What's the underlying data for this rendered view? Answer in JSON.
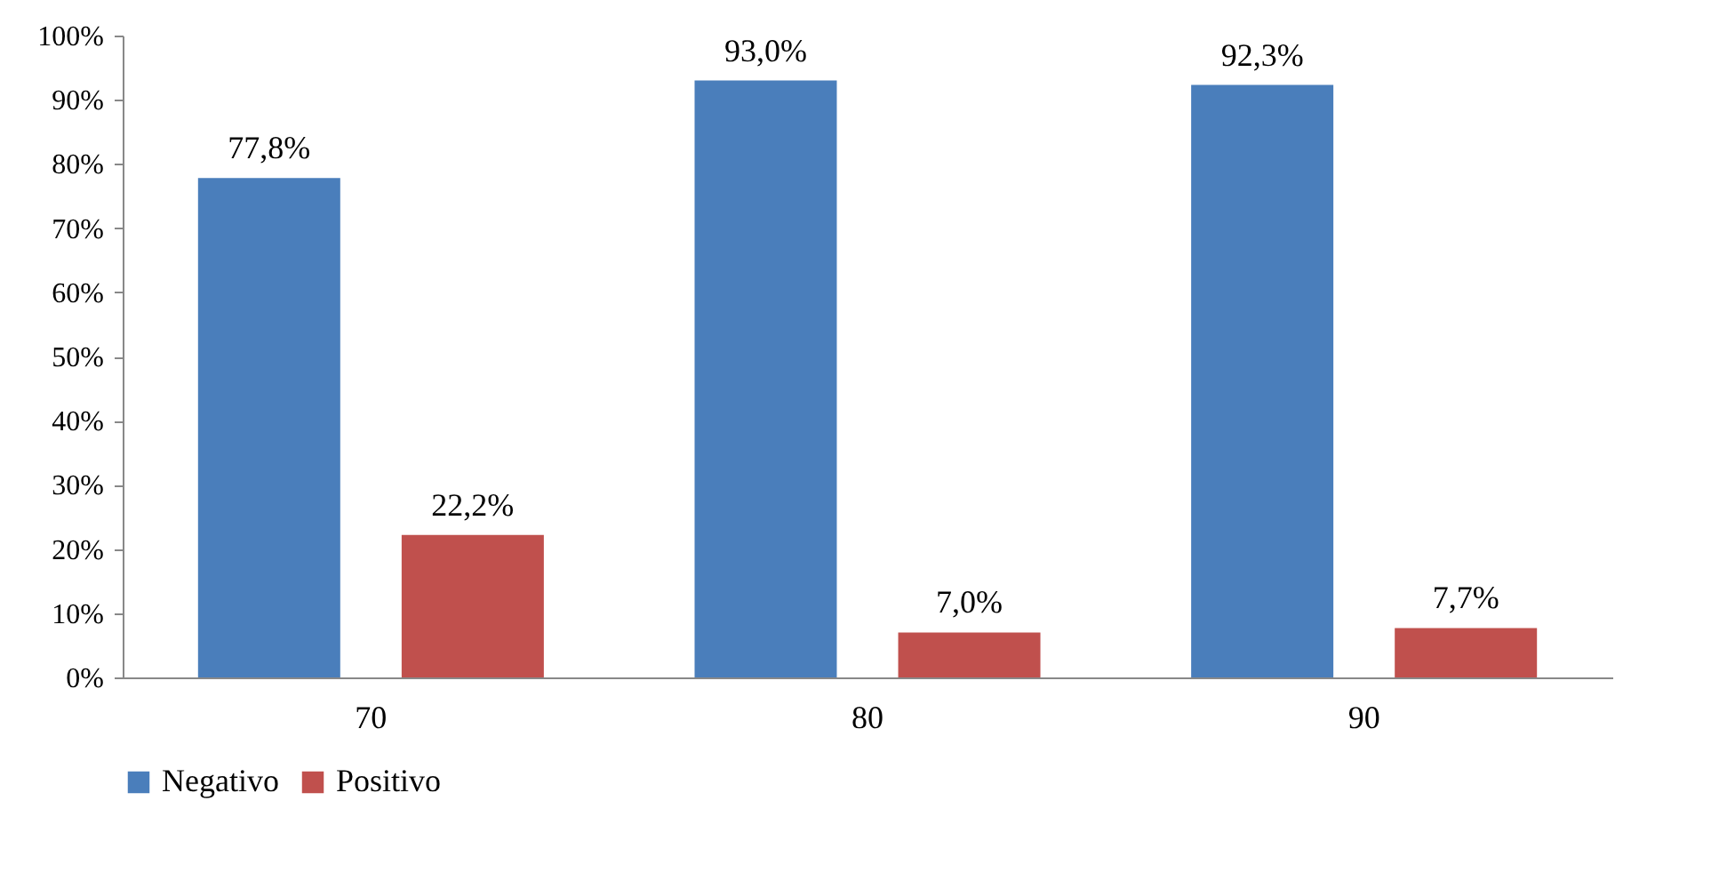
{
  "chart_data": {
    "type": "bar",
    "categories": [
      "70",
      "80",
      "90"
    ],
    "series": [
      {
        "name": "Negativo",
        "color": "#4a7ebb",
        "values": [
          77.8,
          93.0,
          92.3
        ],
        "value_labels": [
          "77,8%",
          "93,0%",
          "92,3%"
        ]
      },
      {
        "name": "Positivo",
        "color": "#c0504d",
        "values": [
          22.2,
          7.0,
          7.7
        ],
        "value_labels": [
          "22,2%",
          "7,0%",
          "7,7%"
        ]
      }
    ],
    "ylim": [
      0,
      100
    ],
    "yticks": [
      {
        "value": 0,
        "label": "0%"
      },
      {
        "value": 10,
        "label": "10%"
      },
      {
        "value": 20,
        "label": "20%"
      },
      {
        "value": 30,
        "label": "30%"
      },
      {
        "value": 40,
        "label": "40%"
      },
      {
        "value": 50,
        "label": "50%"
      },
      {
        "value": 60,
        "label": "60%"
      },
      {
        "value": 70,
        "label": "70%"
      },
      {
        "value": 80,
        "label": "80%"
      },
      {
        "value": 90,
        "label": "90%"
      },
      {
        "value": 100,
        "label": "100%"
      }
    ],
    "grid": false,
    "legend": "bottom"
  }
}
